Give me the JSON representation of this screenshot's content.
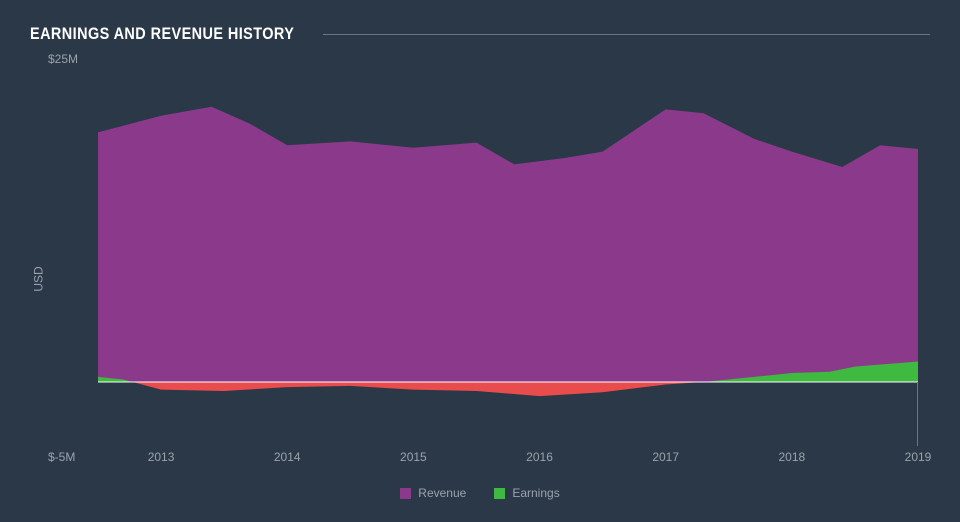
{
  "chart": {
    "type": "area",
    "title": "EARNINGS AND REVENUE HISTORY",
    "background_color": "#2a3847",
    "text_color": "#9aa3ac",
    "title_color": "#ffffff",
    "title_fontsize": 17,
    "label_fontsize": 12,
    "y_axis": {
      "title": "USD",
      "top_label": "$25M",
      "bottom_label": "$-5M",
      "min": -5,
      "max": 25,
      "baseline": 0
    },
    "x_axis": {
      "min": 2012.5,
      "max": 2019,
      "ticks": [
        2013,
        2014,
        2015,
        2016,
        2017,
        2018,
        2019
      ],
      "labels": [
        "2013",
        "2014",
        "2015",
        "2016",
        "2017",
        "2018",
        "2019"
      ]
    },
    "series": [
      {
        "name": "Revenue",
        "color": "#8b3a8b",
        "points": [
          {
            "x": 2012.5,
            "y": 19.5
          },
          {
            "x": 2013.0,
            "y": 20.8
          },
          {
            "x": 2013.4,
            "y": 21.5
          },
          {
            "x": 2013.7,
            "y": 20.2
          },
          {
            "x": 2014.0,
            "y": 18.5
          },
          {
            "x": 2014.5,
            "y": 18.8
          },
          {
            "x": 2015.0,
            "y": 18.3
          },
          {
            "x": 2015.5,
            "y": 18.7
          },
          {
            "x": 2015.8,
            "y": 17.0
          },
          {
            "x": 2016.2,
            "y": 17.5
          },
          {
            "x": 2016.5,
            "y": 18.0
          },
          {
            "x": 2017.0,
            "y": 21.3
          },
          {
            "x": 2017.3,
            "y": 21.0
          },
          {
            "x": 2017.7,
            "y": 19.0
          },
          {
            "x": 2018.0,
            "y": 18.0
          },
          {
            "x": 2018.4,
            "y": 16.8
          },
          {
            "x": 2018.7,
            "y": 18.5
          },
          {
            "x": 2019.0,
            "y": 18.2
          }
        ]
      },
      {
        "name": "Earnings",
        "color_pos": "#3fb93f",
        "color_neg": "#e84c4c",
        "points": [
          {
            "x": 2012.5,
            "y": 0.4
          },
          {
            "x": 2012.7,
            "y": 0.2
          },
          {
            "x": 2013.0,
            "y": -0.6
          },
          {
            "x": 2013.5,
            "y": -0.7
          },
          {
            "x": 2014.0,
            "y": -0.4
          },
          {
            "x": 2014.5,
            "y": -0.3
          },
          {
            "x": 2015.0,
            "y": -0.6
          },
          {
            "x": 2015.5,
            "y": -0.7
          },
          {
            "x": 2016.0,
            "y": -1.1
          },
          {
            "x": 2016.5,
            "y": -0.8
          },
          {
            "x": 2017.0,
            "y": -0.2
          },
          {
            "x": 2017.3,
            "y": 0.0
          },
          {
            "x": 2017.6,
            "y": 0.3
          },
          {
            "x": 2018.0,
            "y": 0.7
          },
          {
            "x": 2018.3,
            "y": 0.8
          },
          {
            "x": 2018.5,
            "y": 1.2
          },
          {
            "x": 2019.0,
            "y": 1.6
          }
        ]
      }
    ],
    "legend": [
      {
        "label": "Revenue",
        "color": "#8b3a8b"
      },
      {
        "label": "Earnings",
        "color": "#3fb93f"
      }
    ],
    "baseline_color": "#ffffff"
  }
}
